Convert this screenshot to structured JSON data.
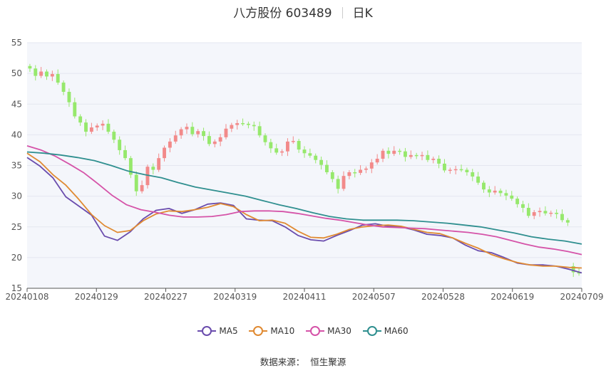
{
  "header": {
    "name": "八方股份 603489",
    "period": "日K"
  },
  "source": {
    "label": "数据来源：",
    "value": "恒生聚源"
  },
  "chart_data": {
    "type": "candlestick",
    "y_axis": {
      "ticks": [
        "15",
        "20",
        "25",
        "30",
        "35",
        "40",
        "45",
        "50",
        "55"
      ],
      "min": 15,
      "max": 55
    },
    "x_axis": {
      "ticks": [
        "20240108",
        "20240129",
        "20240227",
        "20240319",
        "20240411",
        "20240507",
        "20240528",
        "20240619",
        "20240709"
      ]
    },
    "colors": {
      "up": "#f28a8a",
      "down": "#96e86c",
      "MA5": "#6a4cad",
      "MA10": "#e08a32",
      "MA30": "#d553a8",
      "MA60": "#2f8f8f"
    },
    "candles_close": [
      50.8,
      49.6,
      50.3,
      49.5,
      49.9,
      48.5,
      47.0,
      45.3,
      43.0,
      42.0,
      40.5,
      41.2,
      41.5,
      41.8,
      40.5,
      39.2,
      37.5,
      36.2,
      33.5,
      30.8,
      31.8,
      34.8,
      34.3,
      36.2,
      37.9,
      38.9,
      39.9,
      40.9,
      41.3,
      40.1,
      40.6,
      39.8,
      38.5,
      38.9,
      39.6,
      41.0,
      41.6,
      41.9,
      41.8,
      41.6,
      41.4,
      39.9,
      38.8,
      37.8,
      37.1,
      37.3,
      38.9,
      39.0,
      37.6,
      37.0,
      36.6,
      35.9,
      35.1,
      33.9,
      32.8,
      31.2,
      33.3,
      33.9,
      33.8,
      34.3,
      34.5,
      35.5,
      36.1,
      37.4,
      36.9,
      37.4,
      37.3,
      36.4,
      36.7,
      36.6,
      36.7,
      35.9,
      36.1,
      35.3,
      34.2,
      34.3,
      34.4,
      34.3,
      33.9,
      33.2,
      32.2,
      31.1,
      30.6,
      30.9,
      30.5,
      30.1,
      29.6,
      28.7,
      28.1,
      26.8,
      27.4,
      27.6,
      27.2,
      27.3,
      27.1,
      26.1,
      25.7,
      17.6,
      17.4
    ],
    "candles_open": [
      51.2,
      50.8,
      49.6,
      50.3,
      49.5,
      49.9,
      48.5,
      47.0,
      45.3,
      43.0,
      42.0,
      40.5,
      41.2,
      41.5,
      41.8,
      40.5,
      39.2,
      37.5,
      36.2,
      33.5,
      30.8,
      31.8,
      34.8,
      34.3,
      36.2,
      37.9,
      38.9,
      39.9,
      40.9,
      41.3,
      40.1,
      40.6,
      39.8,
      38.5,
      38.9,
      39.6,
      41.0,
      41.6,
      41.9,
      41.8,
      41.6,
      41.4,
      39.9,
      38.8,
      37.8,
      37.1,
      37.3,
      38.9,
      39.0,
      37.6,
      37.0,
      36.6,
      35.9,
      35.1,
      33.9,
      32.8,
      31.2,
      33.3,
      33.9,
      33.8,
      34.3,
      34.5,
      35.5,
      36.1,
      37.4,
      36.9,
      37.4,
      37.3,
      36.4,
      36.7,
      36.6,
      36.7,
      35.9,
      36.1,
      35.3,
      34.2,
      34.3,
      34.4,
      34.3,
      33.9,
      33.2,
      32.2,
      31.1,
      30.6,
      30.9,
      30.5,
      30.1,
      29.6,
      28.7,
      28.1,
      26.8,
      27.4,
      27.6,
      27.2,
      27.3,
      27.1,
      26.1,
      18.6,
      17.6
    ],
    "ma": [
      {
        "name": "MA5",
        "values": [
          36.3,
          34.9,
          33.0,
          29.9,
          28.4,
          26.9,
          23.5,
          22.8,
          24.2,
          26.3,
          27.7,
          28.0,
          27.2,
          27.8,
          28.7,
          28.9,
          28.5,
          26.3,
          26.1,
          26.0,
          25.0,
          23.6,
          22.9,
          22.7,
          23.6,
          24.4,
          25.3,
          25.5,
          25.1,
          25.0,
          24.5,
          23.8,
          23.6,
          23.2,
          22.0,
          21.1,
          20.8,
          20.0,
          19.1,
          18.8,
          18.8,
          18.6,
          18.1,
          17.5
        ]
      },
      {
        "name": "MA10",
        "values": [
          37.0,
          35.6,
          33.5,
          31.8,
          29.5,
          27.0,
          25.2,
          24.1,
          24.4,
          26.0,
          27.1,
          27.6,
          27.5,
          27.8,
          28.2,
          28.8,
          28.3,
          27.0,
          26.0,
          26.1,
          25.6,
          24.3,
          23.3,
          23.2,
          23.8,
          24.6,
          25.0,
          25.2,
          25.3,
          25.1,
          24.6,
          24.1,
          23.9,
          23.2,
          22.3,
          21.5,
          20.5,
          19.8,
          19.2,
          18.8,
          18.6,
          18.6,
          18.4,
          18.3
        ]
      },
      {
        "name": "MA30",
        "values": [
          38.2,
          37.5,
          36.5,
          35.2,
          33.8,
          32.0,
          30.1,
          28.6,
          27.8,
          27.4,
          26.9,
          26.6,
          26.6,
          26.7,
          27.0,
          27.5,
          27.6,
          27.6,
          27.5,
          27.2,
          26.8,
          26.4,
          26.1,
          25.7,
          25.3,
          25.0,
          24.9,
          24.8,
          24.7,
          24.5,
          24.3,
          24.1,
          23.8,
          23.4,
          22.8,
          22.2,
          21.7,
          21.4,
          21.0,
          20.5
        ]
      },
      {
        "name": "MA60",
        "values": [
          37.2,
          37.0,
          36.7,
          36.3,
          35.8,
          35.0,
          34.1,
          33.5,
          33.0,
          32.2,
          31.5,
          31.0,
          30.5,
          30.0,
          29.3,
          28.6,
          28.0,
          27.3,
          26.7,
          26.3,
          26.1,
          26.1,
          26.1,
          26.0,
          25.8,
          25.6,
          25.3,
          25.0,
          24.5,
          24.0,
          23.4,
          23.0,
          22.7,
          22.2
        ]
      }
    ]
  },
  "legend": [
    {
      "label": "MA5"
    },
    {
      "label": "MA10"
    },
    {
      "label": "MA30"
    },
    {
      "label": "MA60"
    }
  ]
}
